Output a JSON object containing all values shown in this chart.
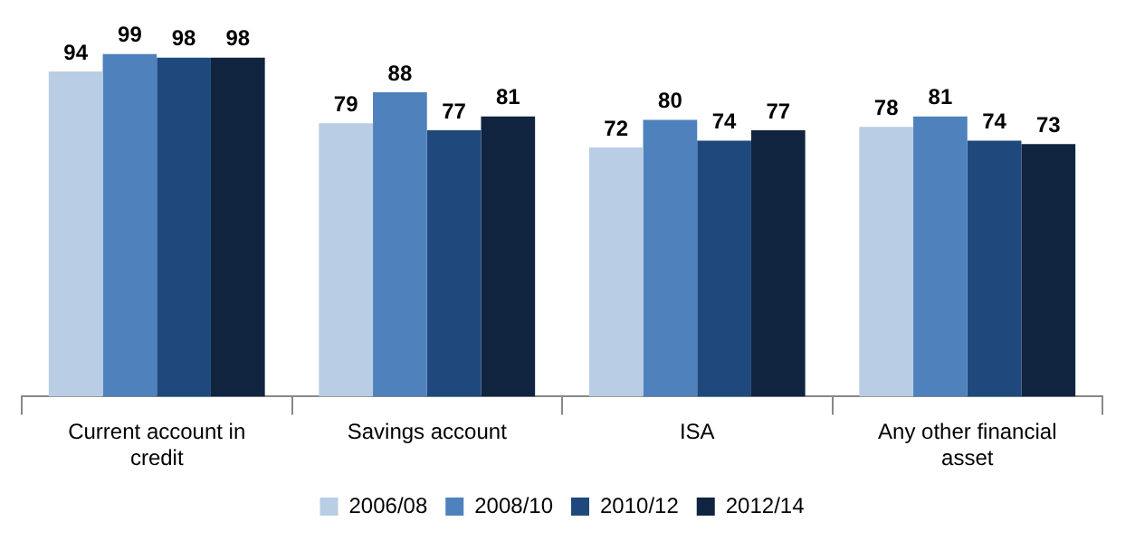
{
  "chart_data": {
    "type": "bar",
    "categories": [
      "Current account in credit",
      "Savings account",
      "ISA",
      "Any other financial asset"
    ],
    "series": [
      {
        "name": "2006/08",
        "color": "#b9cde5",
        "values": [
          94,
          79,
          72,
          78
        ]
      },
      {
        "name": "2008/10",
        "color": "#4f81bd",
        "values": [
          99,
          88,
          80,
          81
        ]
      },
      {
        "name": "2010/12",
        "color": "#1f497d",
        "values": [
          98,
          77,
          74,
          74
        ]
      },
      {
        "name": "2012/14",
        "color": "#10243f",
        "values": [
          98,
          81,
          77,
          73
        ]
      }
    ],
    "data_labels": true,
    "legend": "bottom",
    "grid": false,
    "tick_labels": "x"
  }
}
